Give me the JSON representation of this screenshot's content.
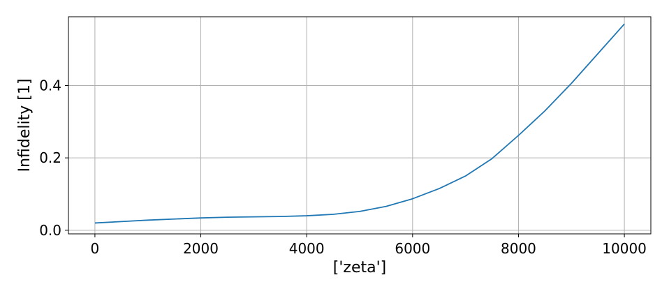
{
  "chart_data": {
    "type": "line",
    "title": "",
    "xlabel": "['zeta']",
    "ylabel": "Infidelity [1]",
    "xlim": [
      -500,
      10500
    ],
    "ylim": [
      -0.01,
      0.59
    ],
    "grid": true,
    "xticks": [
      {
        "value": 0,
        "label": "0"
      },
      {
        "value": 2000,
        "label": "2000"
      },
      {
        "value": 4000,
        "label": "4000"
      },
      {
        "value": 6000,
        "label": "6000"
      },
      {
        "value": 8000,
        "label": "8000"
      },
      {
        "value": 10000,
        "label": "10000"
      }
    ],
    "yticks": [
      {
        "value": 0.0,
        "label": "0.0"
      },
      {
        "value": 0.2,
        "label": "0.2"
      },
      {
        "value": 0.4,
        "label": "0.4"
      }
    ],
    "series": [
      {
        "color": "#1f77b4",
        "x": [
          0,
          500,
          1000,
          1500,
          2000,
          2500,
          3000,
          3500,
          4000,
          4500,
          5000,
          5500,
          6000,
          6500,
          7000,
          7500,
          8000,
          8500,
          9000,
          9500,
          10000
        ],
        "y": [
          0.02,
          0.024,
          0.028,
          0.031,
          0.034,
          0.036,
          0.037,
          0.038,
          0.04,
          0.044,
          0.052,
          0.066,
          0.087,
          0.115,
          0.15,
          0.198,
          0.262,
          0.33,
          0.406,
          0.488,
          0.57
        ]
      }
    ]
  }
}
